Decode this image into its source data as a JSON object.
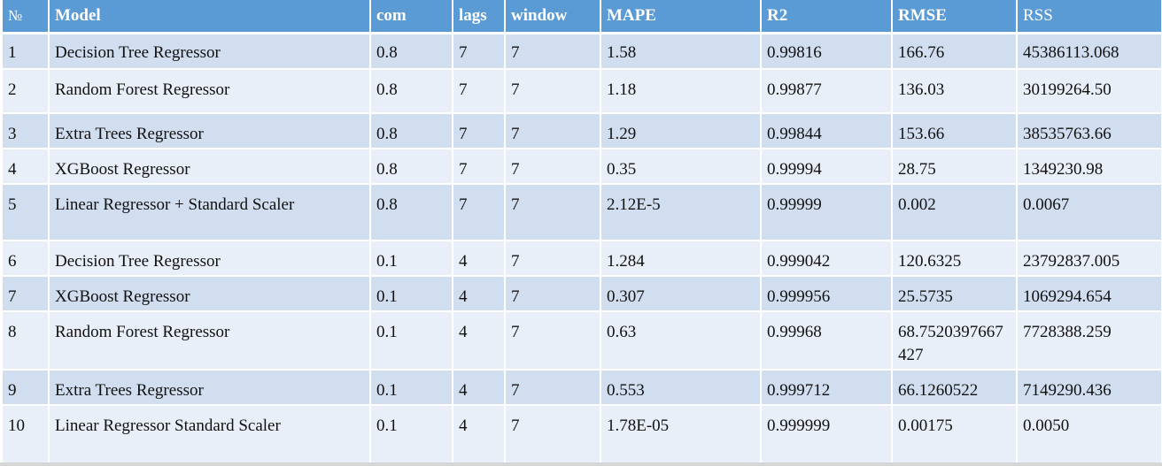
{
  "headers": [
    "№",
    "Model",
    "com",
    "lags",
    "window",
    "MAPE",
    "R2",
    "RMSE",
    "RSS"
  ],
  "rows": [
    [
      "1",
      "Decision Tree Regressor",
      "0.8",
      "7",
      "7",
      "1.58",
      "0.99816",
      "166.76",
      "45386113.068"
    ],
    [
      "2",
      "Random Forest Regressor",
      "0.8",
      "7",
      "7",
      "1.18",
      "0.99877",
      "136.03",
      "30199264.50"
    ],
    [
      "3",
      "Extra Trees Regressor",
      "0.8",
      "7",
      "7",
      "1.29",
      "0.99844",
      "153.66",
      "38535763.66"
    ],
    [
      "4",
      "XGBoost Regressor",
      "0.8",
      "7",
      "7",
      "0.35",
      "0.99994",
      "28.75",
      "1349230.98"
    ],
    [
      "5",
      "Linear Regressor + Standard Scaler",
      "0.8",
      "7",
      "7",
      "2.12E-5",
      "0.99999",
      "0.002",
      "0.0067"
    ],
    [
      "6",
      "Decision Tree Regressor",
      "0.1",
      "4",
      "7",
      "1.284",
      "0.999042",
      "120.6325",
      "23792837.005"
    ],
    [
      "7",
      "XGBoost Regressor",
      "0.1",
      "4",
      "7",
      "0.307",
      "0.999956",
      "25.5735",
      "1069294.654"
    ],
    [
      "8",
      "Random Forest Regressor",
      "0.1",
      "4",
      "7",
      "0.63",
      "0.99968",
      "68.7520397667427",
      "7728388.259"
    ],
    [
      "9",
      "Extra Trees Regressor",
      "0.1",
      "4",
      "7",
      "0.553",
      "0.999712",
      "66.1260522",
      "7149290.436"
    ],
    [
      "10",
      "Linear Regressor Standard Scaler",
      "0.1",
      "4",
      "7",
      "1.78E-05",
      "0.999999",
      "0.00175",
      "0.0050"
    ]
  ],
  "colors": {
    "header_bg": "#5b9bd5",
    "row_odd_bg": "#d0def0",
    "row_even_bg": "#e9eff8"
  }
}
